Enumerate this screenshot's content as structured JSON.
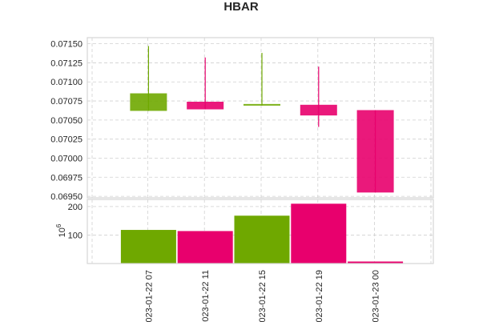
{
  "chart_data": {
    "type": "candlestick",
    "title": "HBAR",
    "x_labels": [
      "023-01-22 07",
      "023-01-22 11",
      "023-01-22 15",
      "023-01-22 19",
      "023-01-23 00"
    ],
    "candles": [
      {
        "open": 0.07062,
        "high": 0.07147,
        "low": 0.07062,
        "close": 0.07085,
        "direction": "up"
      },
      {
        "open": 0.07074,
        "high": 0.07132,
        "low": 0.07064,
        "close": 0.07064,
        "direction": "down"
      },
      {
        "open": 0.07069,
        "high": 0.07138,
        "low": 0.07069,
        "close": 0.07071,
        "direction": "up"
      },
      {
        "open": 0.0707,
        "high": 0.0712,
        "low": 0.07041,
        "close": 0.07056,
        "direction": "down"
      },
      {
        "open": 0.07063,
        "high": 0.07063,
        "low": 0.06955,
        "close": 0.06955,
        "direction": "down"
      }
    ],
    "price_axis": {
      "ylim": [
        0.06948,
        0.07158
      ],
      "ticks": [
        "0.07150",
        "0.07125",
        "0.07100",
        "0.07075",
        "0.07050",
        "0.07025",
        "0.07000",
        "0.06975",
        "0.06950"
      ]
    },
    "volume": [
      118,
      114,
      168,
      210,
      7
    ],
    "volume_axis": {
      "ylim": [
        0,
        225
      ],
      "ticks": [
        "200",
        "100"
      ],
      "exponent_label": "10",
      "exponent": "6"
    },
    "grid": true,
    "colors": {
      "up": "#6fa800",
      "down": "#e8006d",
      "frame": "#d6d6d6",
      "grid": "#d0d0d0"
    }
  }
}
